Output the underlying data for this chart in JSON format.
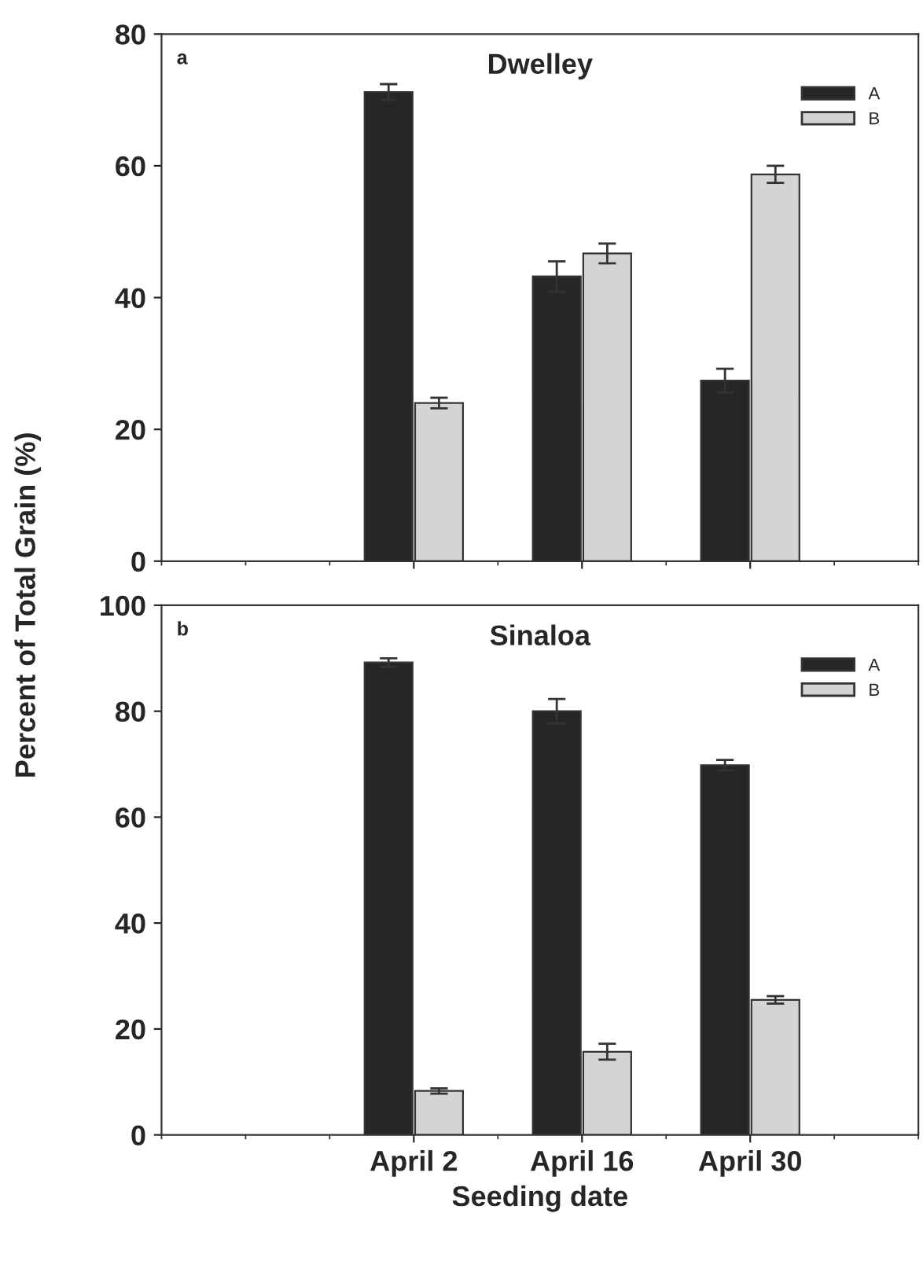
{
  "chart_data": [
    {
      "type": "bar",
      "title": "Dwelley",
      "ylabel": "Percent of Total Grain (%)",
      "annotations": [
        "a"
      ],
      "categories": [
        null,
        null,
        null
      ],
      "tick_labels": "y",
      "ylim": [
        0,
        80
      ],
      "yticks": [
        0,
        20,
        40,
        60,
        80
      ],
      "legend": "top right",
      "grid": false,
      "series": [
        {
          "name": "A",
          "color": "#262626",
          "values": [
            71.2,
            43.2,
            27.4
          ],
          "errors": [
            1.2,
            2.3,
            1.8
          ]
        },
        {
          "name": "B",
          "color": "#d4d4d4",
          "values": [
            24.0,
            46.7,
            58.7
          ],
          "errors": [
            0.8,
            1.5,
            1.3
          ]
        }
      ]
    },
    {
      "type": "bar",
      "title": "Sinaloa",
      "xlabel": "Seeding date",
      "annotations": [
        "b"
      ],
      "categories": [
        "April 2",
        "April 16",
        "April 30"
      ],
      "ylim": [
        0,
        100
      ],
      "yticks": [
        0,
        20,
        40,
        60,
        80,
        100
      ],
      "legend": "top right",
      "grid": false,
      "series": [
        {
          "name": "A",
          "color": "#262626",
          "values": [
            89.2,
            80.0,
            69.8
          ],
          "errors": [
            0.8,
            2.3,
            1.0
          ]
        },
        {
          "name": "B",
          "color": "#d4d4d4",
          "values": [
            8.3,
            15.7,
            25.5
          ],
          "errors": [
            0.5,
            1.5,
            0.7
          ]
        }
      ]
    }
  ]
}
